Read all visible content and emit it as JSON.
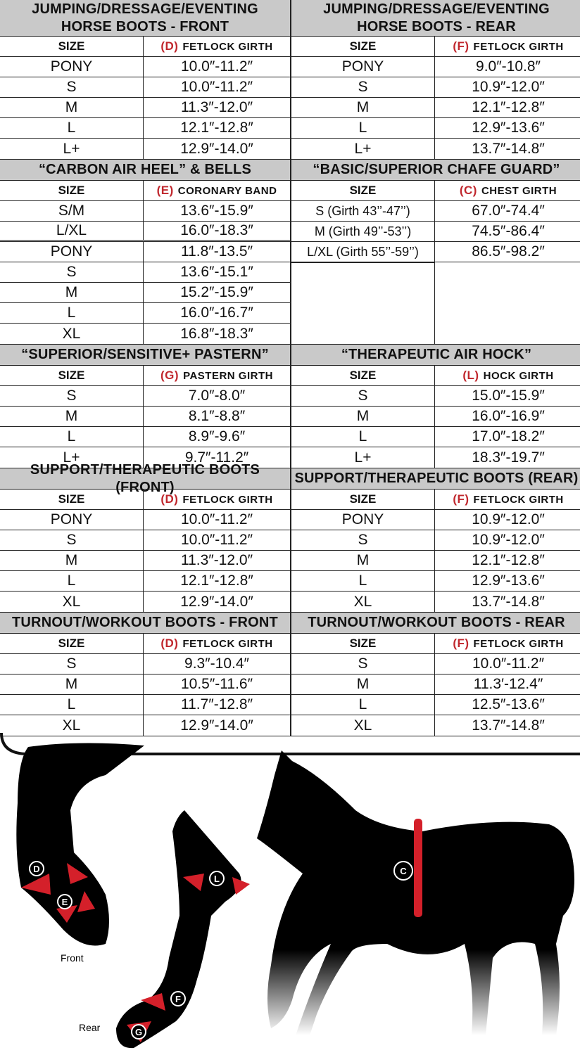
{
  "sections": [
    {
      "left": {
        "title": "JUMPING/DRESSAGE/EVENTING HORSE BOOTS - FRONT",
        "size_label": "SIZE",
        "letter": "(D)",
        "measure": "FETLOCK GIRTH",
        "rows": [
          [
            "PONY",
            "10.0″-11.2″"
          ],
          [
            "S",
            "10.0″-11.2″"
          ],
          [
            "M",
            "11.3″-12.0″"
          ],
          [
            "L",
            "12.1″-12.8″"
          ],
          [
            "L+",
            "12.9″-14.0″"
          ]
        ]
      },
      "right": {
        "title": "JUMPING/DRESSAGE/EVENTING HORSE BOOTS - REAR",
        "size_label": "SIZE",
        "letter": "(F)",
        "measure": "FETLOCK GIRTH",
        "rows": [
          [
            "PONY",
            "9.0″-10.8″"
          ],
          [
            "S",
            "10.9″-12.0″"
          ],
          [
            "M",
            "12.1″-12.8″"
          ],
          [
            "L",
            "12.9″-13.6″"
          ],
          [
            "L+",
            "13.7″-14.8″"
          ]
        ]
      }
    },
    {
      "left": {
        "title": "“CARBON AIR HEEL” & BELLS",
        "size_label": "SIZE",
        "letter": "(E)",
        "measure": "CORONARY BAND",
        "rows": [
          [
            "S/M",
            "13.6″-15.9″"
          ],
          [
            "L/XL",
            "16.0″-18.3″"
          ],
          [
            "PONY",
            "11.8″-13.5″"
          ],
          [
            "S",
            "13.6″-15.1″"
          ],
          [
            "M",
            "15.2″-15.9″"
          ],
          [
            "L",
            "16.0″-16.7″"
          ],
          [
            "XL",
            "16.8″-18.3″"
          ]
        ]
      },
      "right": {
        "title": "“BASIC/SUPERIOR CHAFE GUARD”",
        "size_label": "SIZE",
        "letter": "(C)",
        "measure": "CHEST GIRTH",
        "rows": [
          [
            "S (Girth 43’’-47’’)",
            "67.0″-74.4″"
          ],
          [
            "M (Girth 49’’-53’’)",
            "74.5″-86.4″"
          ],
          [
            "L/XL (Girth 55’’-59’’)",
            "86.5″-98.2″"
          ]
        ]
      }
    },
    {
      "left": {
        "title": "“SUPERIOR/SENSITIVE+ PASTERN”",
        "size_label": "SIZE",
        "letter": "(G)",
        "measure": "PASTERN GIRTH",
        "rows": [
          [
            "S",
            "7.0″-8.0″"
          ],
          [
            "M",
            "8.1″-8.8″"
          ],
          [
            "L",
            "8.9″-9.6″"
          ],
          [
            "L+",
            "9.7″-11.2″"
          ]
        ]
      },
      "right": {
        "title": "“THERAPEUTIC AIR HOCK”",
        "size_label": "SIZE",
        "letter": "(L)",
        "measure": "HOCK GIRTH",
        "rows": [
          [
            "S",
            "15.0″-15.9″"
          ],
          [
            "M",
            "16.0″-16.9″"
          ],
          [
            "L",
            "17.0″-18.2″"
          ],
          [
            "L+",
            "18.3″-19.7″"
          ]
        ]
      }
    },
    {
      "left": {
        "title": "SUPPORT/THERAPEUTIC BOOTS (FRONT)",
        "size_label": "SIZE",
        "letter": "(D)",
        "measure": "FETLOCK GIRTH",
        "rows": [
          [
            "PONY",
            "10.0″-11.2″"
          ],
          [
            "S",
            "10.0″-11.2″"
          ],
          [
            "M",
            "11.3″-12.0″"
          ],
          [
            "L",
            "12.1″-12.8″"
          ],
          [
            "XL",
            "12.9″-14.0″"
          ]
        ]
      },
      "right": {
        "title": "SUPPORT/THERAPEUTIC BOOTS (REAR)",
        "size_label": "SIZE",
        "letter": "(F)",
        "measure": "FETLOCK GIRTH",
        "rows": [
          [
            "PONY",
            "10.9″-12.0″"
          ],
          [
            "S",
            "10.9″-12.0″"
          ],
          [
            "M",
            "12.1″-12.8″"
          ],
          [
            "L",
            "12.9″-13.6″"
          ],
          [
            "XL",
            "13.7″-14.8″"
          ]
        ]
      }
    },
    {
      "left": {
        "title": "TURNOUT/WORKOUT BOOTS - FRONT",
        "size_label": "SIZE",
        "letter": "(D)",
        "measure": "FETLOCK GIRTH",
        "rows": [
          [
            "S",
            "9.3″-10.4″"
          ],
          [
            "M",
            "10.5″-11.6″"
          ],
          [
            "L",
            "11.7″-12.8″"
          ],
          [
            "XL",
            "12.9″-14.0″"
          ]
        ]
      },
      "right": {
        "title": "TURNOUT/WORKOUT BOOTS - REAR",
        "size_label": "SIZE",
        "letter": "(F)",
        "measure": "FETLOCK GIRTH",
        "rows": [
          [
            "S",
            "10.0″-11.2″"
          ],
          [
            "M",
            "11.3′-12.4″"
          ],
          [
            "L",
            "12.5″-13.6″"
          ],
          [
            "XL",
            "13.7″-14.8″"
          ]
        ]
      }
    }
  ],
  "illustration": {
    "front_label": "Front",
    "rear_label": "Rear",
    "markers": [
      "D",
      "E",
      "L",
      "F",
      "G",
      "C"
    ],
    "accent": "#d4202a"
  }
}
